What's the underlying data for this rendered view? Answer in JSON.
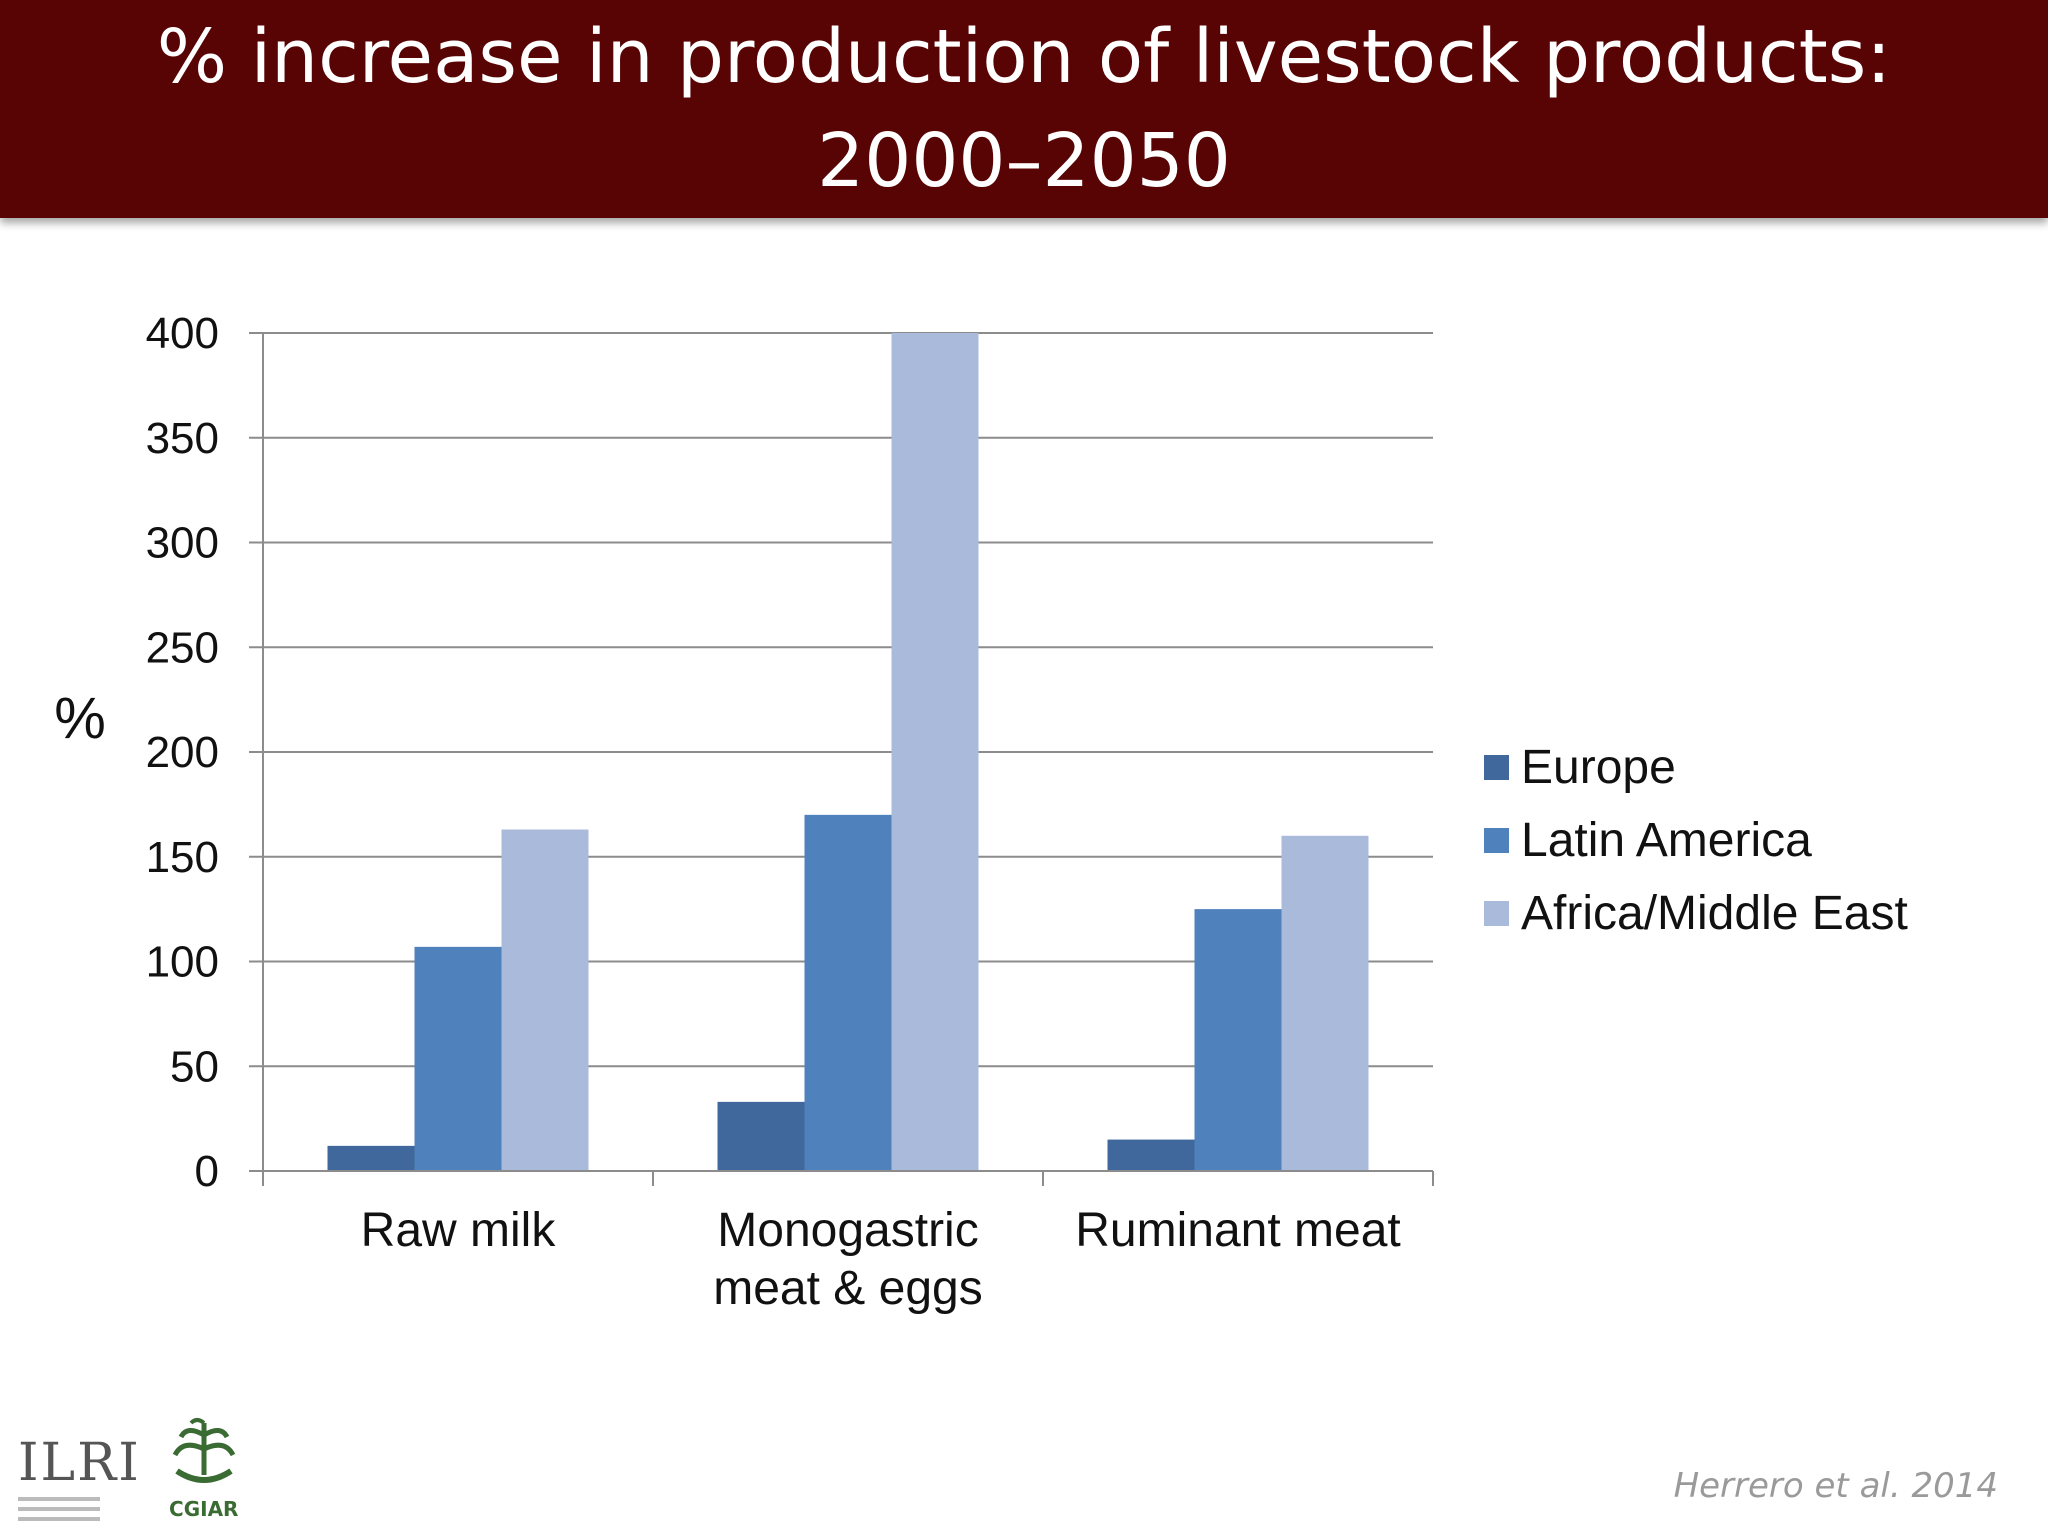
{
  "title": {
    "line1": "% increase in production of livestock products:",
    "line2": "2000–2050"
  },
  "chart_data": {
    "type": "bar",
    "title": "% increase in production of livestock products: 2000–2050",
    "ylabel": "%",
    "xlabel": "",
    "ylim": [
      0,
      400
    ],
    "yticks": [
      0,
      50,
      100,
      150,
      200,
      250,
      300,
      350,
      400
    ],
    "grid": true,
    "legend_position": "right",
    "categories": [
      [
        "Raw milk"
      ],
      [
        "Monogastric",
        "meat & eggs"
      ],
      [
        "Ruminant meat"
      ]
    ],
    "series": [
      {
        "name": "Europe",
        "values": [
          12,
          33,
          15
        ],
        "color": "#41689c"
      },
      {
        "name": "Latin America",
        "values": [
          107,
          170,
          125
        ],
        "color": "#4f81bd"
      },
      {
        "name": "Africa/Middle East",
        "values": [
          163,
          400,
          160
        ],
        "color": "#aabadb"
      }
    ]
  },
  "logos": {
    "ilri": "ILRI",
    "cgiar": "CGIAR"
  },
  "citation": "Herrero et al. 2014"
}
